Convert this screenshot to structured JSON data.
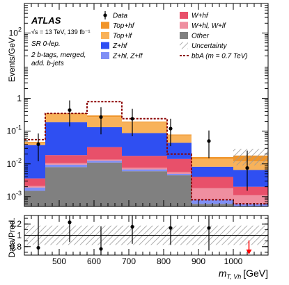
{
  "chart_data": [
    {
      "type": "bar",
      "subtype": "stacked-histogram",
      "experiment": "ATLAS",
      "energy_label": "√s = 13 TeV, 139 fb⁻¹",
      "annotations": [
        "SR 0-lep.",
        "2 b-tags, merged,",
        "add. b-jets"
      ],
      "xlabel_main": "m",
      "xlabel_sub": "T, Vh",
      "xlabel_unit": "[GeV]",
      "ylabel": "Events/GeV",
      "log_y": true,
      "xlim": [
        400,
        1100
      ],
      "ylim": [
        0.0005,
        800
      ],
      "x_ticks": [
        500,
        600,
        700,
        800,
        900,
        1000
      ],
      "y_tick_labels": [
        {
          "value": 0.001,
          "label": "10",
          "exp": "-3"
        },
        {
          "value": 0.01,
          "label": "10",
          "exp": "-2"
        },
        {
          "value": 0.1,
          "label": "10",
          "exp": "-1"
        },
        {
          "value": 1,
          "label": "1",
          "exp": ""
        },
        {
          "value": 100,
          "label": "10",
          "exp": "2"
        }
      ],
      "bin_edges": [
        400,
        460,
        580,
        680,
        810,
        880,
        1000,
        1100
      ],
      "stack": [
        {
          "name": "Other",
          "color": "#808080",
          "values": [
            0.0015,
            0.008,
            0.011,
            0.006,
            0.0045,
            0.0006,
            0.0005
          ]
        },
        {
          "name": "Z+hl, Z+lf",
          "color": "#7f8ff5",
          "values": [
            0.0004,
            0.0015,
            0.0015,
            0.0008,
            0.0005,
            0.0002,
            0.0001
          ]
        },
        {
          "name": "W+hl, W+lf",
          "color": "#ef8fa0",
          "values": [
            0.0002,
            0.001,
            0.001,
            0.0008,
            0.0006,
            0.001,
            0.0005
          ]
        },
        {
          "name": "W+hf",
          "color": "#e8506a",
          "values": [
            0.0015,
            0.008,
            0.019,
            0.01,
            0.0085,
            0.0022,
            0.0009
          ]
        },
        {
          "name": "Z+hf",
          "color": "#2f4ff2",
          "values": [
            0.034,
            0.17,
            0.1,
            0.07,
            0.03,
            0.0042,
            0.0045
          ]
        },
        {
          "name": "Top+lf",
          "color": "#f8b25a",
          "values": [
            0.0065,
            0.14,
            0.14,
            0.1,
            0.03,
            0.006,
            0.0055
          ]
        },
        {
          "name": "Top+hf",
          "color": "#f0952a",
          "values": [
            0.003,
            0.02,
            0.03,
            0.01,
            0.005,
            0.002,
            0.006
          ]
        }
      ],
      "signal": {
        "name": "bbA (m = 0.7 TeV)",
        "color": "#8b0000",
        "values": [
          0.055,
          0.35,
          0.8,
          0.24,
          0.02,
          0.0008,
          0.0006
        ]
      },
      "data": {
        "name": "Data",
        "x": [
          440,
          530,
          620,
          710,
          820,
          930,
          1040
        ],
        "y": [
          0.04,
          0.44,
          0.27,
          0.24,
          0.12,
          0.05,
          0.0075
        ],
        "err_low": [
          0.028,
          0.3,
          0.19,
          0.17,
          0.085,
          0.035,
          0.006
        ],
        "err_high": [
          0.045,
          0.43,
          0.27,
          0.24,
          0.12,
          0.055,
          0.018
        ]
      },
      "legend": {
        "placement": "top-right",
        "entries": [
          {
            "name": "Data",
            "kind": "marker",
            "color": "#000000"
          },
          {
            "name": "W+hf",
            "kind": "box",
            "color": "#e8506a"
          },
          {
            "name": "Top+hf",
            "kind": "box",
            "color": "#f0952a"
          },
          {
            "name": "W+hl, W+lf",
            "kind": "box",
            "color": "#ef8fa0"
          },
          {
            "name": "Top+lf",
            "kind": "box",
            "color": "#f8b25a"
          },
          {
            "name": "Other",
            "kind": "box",
            "color": "#808080"
          },
          {
            "name": "Z+hf",
            "kind": "box",
            "color": "#2f4ff2"
          },
          {
            "name": "Uncertainty",
            "kind": "hatch",
            "color": "#aaaaaa"
          },
          {
            "name": "Z+hl, Z+lf",
            "kind": "box",
            "color": "#7f8ff5"
          },
          {
            "name": "bbA (m = 0.7 TeV)",
            "kind": "dashed",
            "color": "#8b0000"
          }
        ]
      }
    },
    {
      "type": "scatter",
      "subtype": "ratio",
      "ylabel": "Data/Pred.",
      "xlim": [
        400,
        1100
      ],
      "ylim": [
        0.65,
        1.35
      ],
      "y_ticks": [
        0.8,
        1,
        1.2
      ],
      "reference": 1,
      "uncertainty_band": [
        0.83,
        1.17
      ],
      "x": [
        440,
        530,
        620,
        710,
        820,
        930
      ],
      "y": [
        0.78,
        1.23,
        0.76,
        1.15,
        1.13,
        1.13
      ],
      "err_low": [
        0.45,
        0.35,
        0.3,
        0.3,
        0.3,
        0.4
      ],
      "err_high": [
        0.7,
        0.5,
        0.4,
        0.4,
        0.4,
        0.5
      ],
      "off_scale_arrow_x": 1045
    }
  ]
}
